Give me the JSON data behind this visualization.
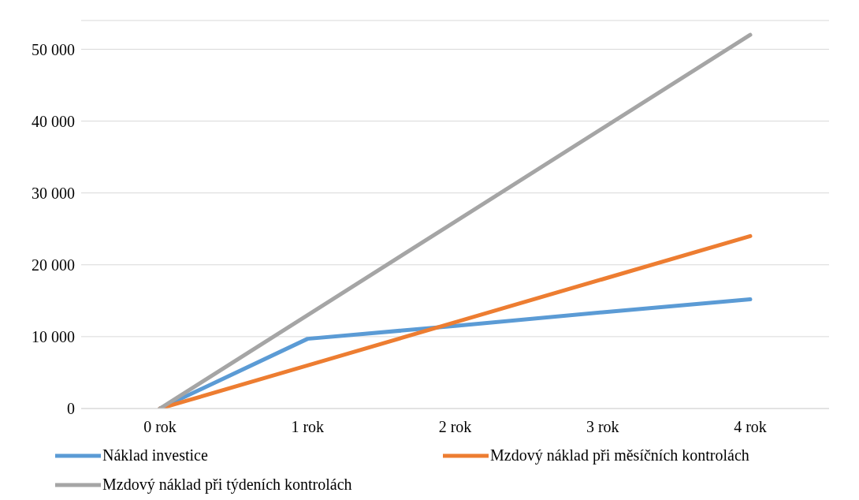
{
  "chart_data": {
    "type": "line",
    "categories": [
      "0 rok",
      "1 rok",
      "2 rok",
      "3 rok",
      "4 rok"
    ],
    "series": [
      {
        "name": "Náklad investice",
        "color": "#5b9bd5",
        "values": [
          0,
          9700,
          11500,
          13400,
          15200
        ]
      },
      {
        "name": "Mzdový náklad při měsíčních kontrolách",
        "color": "#ed7d31",
        "values": [
          0,
          6000,
          12000,
          18000,
          24000
        ]
      },
      {
        "name": "Mzdový náklad při týdeních kontrolách",
        "color": "#a5a5a5",
        "values": [
          0,
          13000,
          26000,
          39000,
          52000
        ]
      }
    ],
    "ylim": [
      0,
      54000
    ],
    "yticks": [
      {
        "value": 0,
        "label": "0"
      },
      {
        "value": 10000,
        "label": "10 000"
      },
      {
        "value": 20000,
        "label": "20 000"
      },
      {
        "value": 30000,
        "label": "30 000"
      },
      {
        "value": 40000,
        "label": "40 000"
      },
      {
        "value": 50000,
        "label": "50 000"
      }
    ],
    "grid": "y",
    "legend": "bottom",
    "marker": "none",
    "line_style": "solid"
  }
}
